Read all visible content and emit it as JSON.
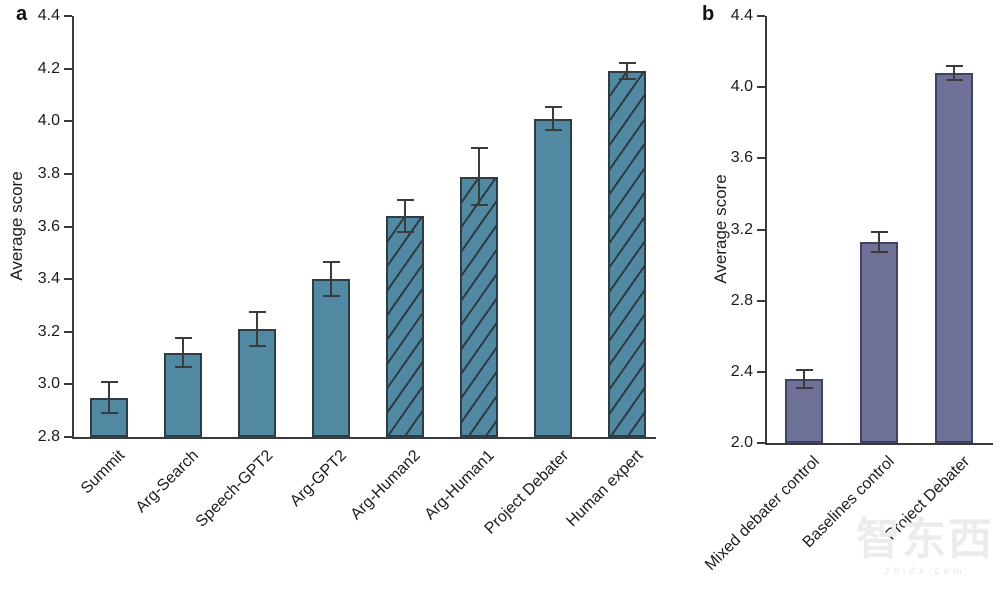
{
  "figure": {
    "watermark": {
      "logo": "智东西",
      "domain": "zhidx.com"
    }
  },
  "chart_data": [
    {
      "type": "bar",
      "panel": "a",
      "title": "",
      "xlabel": "",
      "ylabel": "Average score",
      "ylim": [
        2.8,
        4.4
      ],
      "yticks": [
        "2.8",
        "3.0",
        "3.2",
        "3.4",
        "3.6",
        "3.8",
        "4.0",
        "4.2",
        "4.4"
      ],
      "grid": false,
      "legend": null,
      "categories": [
        "Summit",
        "Arg-Search",
        "Speech-GPT2",
        "Arg-GPT2",
        "Arg-Human2",
        "Arg-Human1",
        "Project Debater",
        "Human expert"
      ],
      "values": [
        2.95,
        3.12,
        3.21,
        3.4,
        3.64,
        3.79,
        4.01,
        4.19
      ],
      "errors": [
        0.06,
        0.055,
        0.065,
        0.065,
        0.06,
        0.11,
        0.045,
        0.03
      ],
      "hatched": [
        false,
        false,
        false,
        false,
        true,
        true,
        false,
        true
      ],
      "bar_color": "#5189a3",
      "bar_border_color": "#2e3c44",
      "hatch_color": "#2c3a42",
      "error_color": "#3b3b3b",
      "axis_color": "#3b3b3b"
    },
    {
      "type": "bar",
      "panel": "b",
      "title": "",
      "xlabel": "",
      "ylabel": "Average score",
      "ylim": [
        2.0,
        4.4
      ],
      "yticks": [
        "2.0",
        "2.4",
        "2.8",
        "3.2",
        "3.6",
        "4.0",
        "4.4"
      ],
      "grid": false,
      "legend": null,
      "categories": [
        "Mixed debater control",
        "Baselines control",
        "Project Debater"
      ],
      "values": [
        2.36,
        3.13,
        4.08
      ],
      "errors": [
        0.05,
        0.055,
        0.04
      ],
      "hatched": [
        false,
        false,
        false
      ],
      "bar_color": "#6f7296",
      "bar_border_color": "#404263",
      "hatch_color": "#3a3d58",
      "error_color": "#3b3b3b",
      "axis_color": "#3b3b3b"
    }
  ]
}
